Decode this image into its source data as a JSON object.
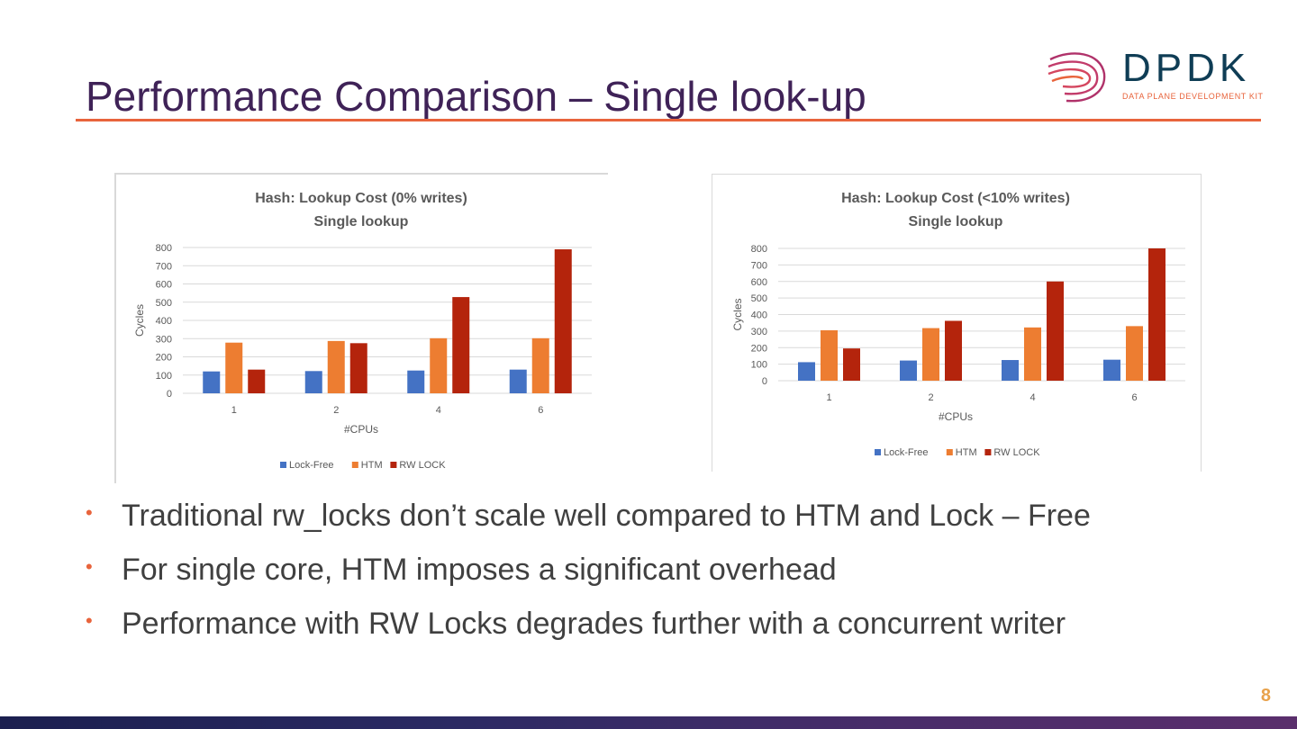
{
  "slide": {
    "title": "Performance Comparison – Single look-up",
    "page_number": "8"
  },
  "logo": {
    "word": "DPDK",
    "tagline": "DATA PLANE DEVELOPMENT KIT",
    "icon": "dpdk-swirl-logo-icon"
  },
  "colors": {
    "title": "#3f2257",
    "accent": "#e8643c",
    "lock_free": "#4472c4",
    "htm": "#ed7d31",
    "rw_lock": "#b4240c"
  },
  "bullets": [
    "Traditional rw_locks don’t scale well compared to HTM and Lock – Free",
    "For single core, HTM imposes a significant overhead",
    "Performance with RW Locks degrades further with a concurrent writer"
  ],
  "chart_data": [
    {
      "type": "bar",
      "title": "Hash: Lookup Cost (0% writes)",
      "subtitle": "Single lookup",
      "xlabel": "#CPUs",
      "ylabel": "Cycles",
      "categories": [
        "1",
        "2",
        "4",
        "6"
      ],
      "ylim": [
        0,
        800
      ],
      "yticks": [
        0,
        100,
        200,
        300,
        400,
        500,
        600,
        700,
        800
      ],
      "grid": true,
      "legend": "bottom",
      "series": [
        {
          "name": "Lock-Free",
          "color": "#4472c4",
          "values": [
            120,
            122,
            125,
            130
          ]
        },
        {
          "name": "HTM",
          "color": "#ed7d31",
          "values": [
            278,
            287,
            302,
            302
          ]
        },
        {
          "name": "RW LOCK",
          "color": "#b4240c",
          "values": [
            130,
            275,
            528,
            790
          ]
        }
      ]
    },
    {
      "type": "bar",
      "title": "Hash: Lookup Cost (<10% writes)",
      "subtitle": "Single lookup",
      "xlabel": "#CPUs",
      "ylabel": "Cycles",
      "categories": [
        "1",
        "2",
        "4",
        "6"
      ],
      "ylim": [
        0,
        800
      ],
      "yticks": [
        0,
        100,
        200,
        300,
        400,
        500,
        600,
        700,
        800
      ],
      "grid": true,
      "legend": "bottom",
      "series": [
        {
          "name": "Lock-Free",
          "color": "#4472c4",
          "values": [
            112,
            122,
            125,
            127
          ]
        },
        {
          "name": "HTM",
          "color": "#ed7d31",
          "values": [
            305,
            318,
            322,
            330
          ]
        },
        {
          "name": "RW LOCK",
          "color": "#b4240c",
          "values": [
            195,
            362,
            600,
            800
          ]
        }
      ]
    }
  ]
}
